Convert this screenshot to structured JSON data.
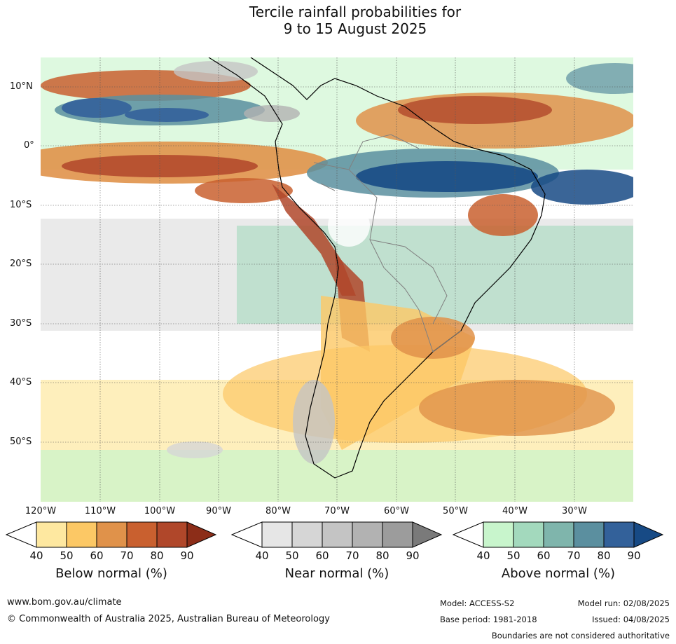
{
  "title_line1": "Tercile rainfall probabilities for",
  "title_line2": "9 to 15 August 2025",
  "lat_labels": [
    "10°N",
    "0°",
    "10°S",
    "20°S",
    "30°S",
    "40°S",
    "50°S"
  ],
  "lon_labels": [
    "120°W",
    "110°W",
    "100°W",
    "90°W",
    "80°W",
    "70°W",
    "60°W",
    "50°W",
    "40°W",
    "30°W"
  ],
  "colorbars": [
    {
      "title": "Below normal (%)",
      "ticks": [
        "40",
        "50",
        "60",
        "70",
        "80",
        "90"
      ],
      "colors": [
        "#ffffff",
        "#fee8a0",
        "#fcc865",
        "#e0924a",
        "#c9602f",
        "#b0472a",
        "#8c2d18"
      ]
    },
    {
      "title": "Near normal (%)",
      "ticks": [
        "40",
        "50",
        "60",
        "70",
        "80",
        "90"
      ],
      "colors": [
        "#ffffff",
        "#e6e6e6",
        "#d6d6d6",
        "#c4c4c4",
        "#b2b2b2",
        "#9c9c9c",
        "#7a7a7a"
      ]
    },
    {
      "title": "Above normal (%)",
      "ticks": [
        "40",
        "50",
        "60",
        "70",
        "80",
        "90"
      ],
      "colors": [
        "#ffffff",
        "#c8f5cc",
        "#a3d9bd",
        "#7fb5ac",
        "#5b8f9f",
        "#33619a",
        "#174a85"
      ]
    }
  ],
  "footer": {
    "url": "www.bom.gov.au/climate",
    "copyright": "© Commonwealth of Australia 2025, Australian Bureau of Meteorology",
    "model": "Model: ACCESS-S2",
    "base_period": "Base period: 1981-2018",
    "model_run": "Model run: 02/08/2025",
    "issued": "Issued: 04/08/2025",
    "disclaimer": "Boundaries are not considered authoritative"
  }
}
